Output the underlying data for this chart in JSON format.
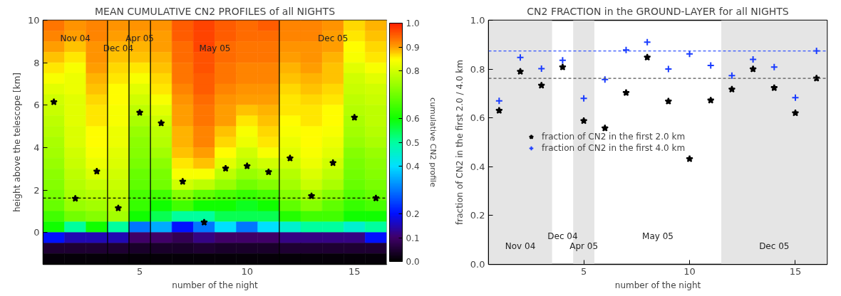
{
  "chart_data": [
    {
      "type": "heatmap",
      "title": "MEAN CUMULATIVE CN2 PROFILES of all NIGHTS",
      "xlabel": "number of the night",
      "ylabel": "height above the telescope [km]",
      "clabel": "cumulative CN2 profile",
      "x": [
        1,
        2,
        3,
        4,
        5,
        6,
        7,
        8,
        9,
        10,
        11,
        12,
        13,
        14,
        15,
        16
      ],
      "cells": [
        [
          0.93,
          0.91,
          0.92,
          0.91,
          0.91,
          0.91,
          0.95,
          0.97,
          0.95,
          0.94,
          0.95,
          0.92,
          0.92,
          0.91,
          0.87,
          0.89
        ],
        [
          0.92,
          0.9,
          0.92,
          0.9,
          0.9,
          0.9,
          0.95,
          0.97,
          0.95,
          0.94,
          0.94,
          0.92,
          0.92,
          0.9,
          0.86,
          0.88
        ],
        [
          0.9,
          0.88,
          0.91,
          0.89,
          0.89,
          0.9,
          0.94,
          0.97,
          0.94,
          0.93,
          0.93,
          0.91,
          0.91,
          0.9,
          0.85,
          0.87
        ],
        [
          0.88,
          0.86,
          0.91,
          0.88,
          0.88,
          0.89,
          0.94,
          0.96,
          0.94,
          0.93,
          0.93,
          0.9,
          0.91,
          0.89,
          0.84,
          0.86
        ],
        [
          0.86,
          0.84,
          0.9,
          0.87,
          0.86,
          0.88,
          0.93,
          0.96,
          0.93,
          0.92,
          0.92,
          0.89,
          0.9,
          0.88,
          0.82,
          0.84
        ],
        [
          0.84,
          0.83,
          0.89,
          0.86,
          0.84,
          0.87,
          0.93,
          0.95,
          0.93,
          0.92,
          0.92,
          0.88,
          0.89,
          0.88,
          0.8,
          0.82
        ],
        [
          0.82,
          0.83,
          0.88,
          0.85,
          0.82,
          0.86,
          0.92,
          0.95,
          0.92,
          0.91,
          0.91,
          0.87,
          0.88,
          0.87,
          0.79,
          0.8
        ],
        [
          0.8,
          0.82,
          0.87,
          0.85,
          0.8,
          0.84,
          0.91,
          0.94,
          0.91,
          0.9,
          0.9,
          0.86,
          0.87,
          0.86,
          0.78,
          0.79
        ],
        [
          0.79,
          0.82,
          0.86,
          0.84,
          0.78,
          0.82,
          0.9,
          0.93,
          0.9,
          0.88,
          0.89,
          0.86,
          0.86,
          0.85,
          0.77,
          0.78
        ],
        [
          0.78,
          0.82,
          0.86,
          0.84,
          0.76,
          0.8,
          0.9,
          0.93,
          0.9,
          0.86,
          0.88,
          0.85,
          0.86,
          0.85,
          0.76,
          0.78
        ],
        [
          0.77,
          0.81,
          0.85,
          0.83,
          0.74,
          0.78,
          0.89,
          0.92,
          0.88,
          0.84,
          0.87,
          0.84,
          0.85,
          0.84,
          0.75,
          0.77
        ],
        [
          0.76,
          0.81,
          0.85,
          0.83,
          0.73,
          0.77,
          0.89,
          0.92,
          0.87,
          0.83,
          0.86,
          0.83,
          0.85,
          0.83,
          0.74,
          0.76
        ],
        [
          0.75,
          0.8,
          0.84,
          0.82,
          0.72,
          0.75,
          0.88,
          0.9,
          0.85,
          0.8,
          0.84,
          0.82,
          0.84,
          0.82,
          0.72,
          0.74
        ],
        [
          0.74,
          0.79,
          0.83,
          0.81,
          0.71,
          0.73,
          0.86,
          0.88,
          0.82,
          0.78,
          0.8,
          0.8,
          0.83,
          0.8,
          0.71,
          0.73
        ],
        [
          0.73,
          0.78,
          0.81,
          0.8,
          0.69,
          0.71,
          0.84,
          0.84,
          0.78,
          0.74,
          0.76,
          0.77,
          0.81,
          0.78,
          0.7,
          0.72
        ],
        [
          0.72,
          0.77,
          0.79,
          0.79,
          0.68,
          0.7,
          0.8,
          0.78,
          0.74,
          0.7,
          0.72,
          0.75,
          0.79,
          0.76,
          0.69,
          0.71
        ],
        [
          0.71,
          0.76,
          0.77,
          0.78,
          0.66,
          0.65,
          0.72,
          0.68,
          0.66,
          0.64,
          0.66,
          0.72,
          0.75,
          0.72,
          0.67,
          0.69
        ],
        [
          0.69,
          0.74,
          0.75,
          0.77,
          0.64,
          0.6,
          0.65,
          0.6,
          0.6,
          0.58,
          0.6,
          0.68,
          0.72,
          0.68,
          0.64,
          0.66
        ],
        [
          0.65,
          0.7,
          0.72,
          0.75,
          0.6,
          0.55,
          0.5,
          0.5,
          0.55,
          0.55,
          0.55,
          0.62,
          0.65,
          0.65,
          0.6,
          0.6
        ],
        [
          0.6,
          0.5,
          0.6,
          0.5,
          0.3,
          0.35,
          0.2,
          0.3,
          0.4,
          0.3,
          0.4,
          0.45,
          0.5,
          0.5,
          0.45,
          0.5
        ],
        [
          0.2,
          0.15,
          0.15,
          0.15,
          0.1,
          0.1,
          0.08,
          0.12,
          0.1,
          0.1,
          0.1,
          0.12,
          0.12,
          0.12,
          0.12,
          0.2
        ],
        [
          0.05,
          0.05,
          0.05,
          0.05,
          0.04,
          0.04,
          0.04,
          0.05,
          0.04,
          0.04,
          0.04,
          0.05,
          0.05,
          0.05,
          0.05,
          0.05
        ],
        [
          0.01,
          0.01,
          0.01,
          0.01,
          0.01,
          0.01,
          0.01,
          0.01,
          0.01,
          0.01,
          0.01,
          0.01,
          0.01,
          0.01,
          0.01,
          0.01
        ]
      ],
      "clim": [
        0,
        1
      ],
      "cticks": [
        {
          "value": 0,
          "label": "0.0"
        },
        {
          "value": 0.1,
          "label": "0.1"
        },
        {
          "value": 0.2,
          "label": "0.2"
        },
        {
          "value": 0.4,
          "label": "0.4"
        },
        {
          "value": 0.5,
          "label": "0.5"
        },
        {
          "value": 0.6,
          "label": "0.6"
        },
        {
          "value": 0.8,
          "label": "0.8"
        },
        {
          "value": 0.9,
          "label": "0.9"
        },
        {
          "value": 1,
          "label": "1.0"
        }
      ],
      "series": [
        {
          "type": "scatter",
          "color": "#000000",
          "marker": "star",
          "x": [
            1,
            2,
            3,
            4,
            5,
            6,
            7,
            8,
            9,
            10,
            11,
            12,
            13,
            14,
            15,
            16
          ],
          "values": [
            6.15,
            1.6,
            2.88,
            1.15,
            5.65,
            5.15,
            2.4,
            0.48,
            3.02,
            3.13,
            2.85,
            3.5,
            1.72,
            3.28,
            5.42,
            1.62
          ]
        }
      ],
      "xlim": [
        0.5,
        16.5
      ],
      "xticks": [
        5,
        10,
        15
      ],
      "ylim": [
        -1.5,
        10
      ],
      "yticks": [
        0,
        2,
        4,
        6,
        8,
        10
      ],
      "ref_lines": [
        {
          "axis": "y",
          "value": 1.62,
          "color": "#000000",
          "line_style": "dashed"
        },
        {
          "axis": "x",
          "value": 3.5,
          "color": "#000000",
          "line_style": "solid"
        },
        {
          "axis": "x",
          "value": 4.5,
          "color": "#000000",
          "line_style": "solid"
        },
        {
          "axis": "x",
          "value": 5.5,
          "color": "#000000",
          "line_style": "solid"
        },
        {
          "axis": "x",
          "value": 11.5,
          "color": "#000000",
          "line_style": "solid"
        }
      ],
      "annotations": [
        "Nov 04",
        "Dec 04",
        "Apr 05",
        "May 05",
        "Dec 05"
      ],
      "grid": false
    },
    {
      "type": "scatter",
      "title": "CN2 FRACTION in the GROUND-LAYER for all NIGHTS",
      "xlabel": "number of the night",
      "ylabel": "fraction of CN2 in the first 2.0 / 4.0 km",
      "x": [
        1,
        2,
        3,
        4,
        5,
        6,
        7,
        8,
        9,
        10,
        11,
        12,
        13,
        14,
        15,
        16
      ],
      "series": [
        {
          "name": "fraction of CN2 in the first 2.0 km",
          "color": "#000000",
          "marker": "star",
          "values": [
            0.63,
            0.79,
            0.733,
            0.808,
            0.588,
            0.558,
            0.703,
            0.848,
            0.668,
            0.432,
            0.672,
            0.717,
            0.8,
            0.723,
            0.62,
            0.762
          ]
        },
        {
          "name": "fraction of CN2 in the first 4.0 km",
          "color": "#1a3cff",
          "marker": "cross",
          "values": [
            0.67,
            0.848,
            0.802,
            0.836,
            0.68,
            0.757,
            0.878,
            0.91,
            0.8,
            0.862,
            0.815,
            0.773,
            0.84,
            0.808,
            0.683,
            0.875
          ]
        }
      ],
      "xlim": [
        0.5,
        16.5
      ],
      "xticks": [
        5,
        10,
        15
      ],
      "ylim": [
        0,
        1
      ],
      "yticks": [
        {
          "value": 0,
          "label": "0.0"
        },
        {
          "value": 0.2,
          "label": "0.2"
        },
        {
          "value": 0.4,
          "label": "0.4"
        },
        {
          "value": 0.6,
          "label": "0.6"
        },
        {
          "value": 0.8,
          "label": "0.8"
        },
        {
          "value": 1,
          "label": "1.0"
        }
      ],
      "ref_lines": [
        {
          "axis": "y",
          "value": 0.874,
          "color": "#3355ff",
          "line_style": "dashed"
        },
        {
          "axis": "y",
          "value": 0.762,
          "color": "#555555",
          "line_style": "dashed"
        }
      ],
      "bands": [
        {
          "axis": "x",
          "from": 0.5,
          "to": 3.5,
          "color": "#e5e5e5"
        },
        {
          "axis": "x",
          "from": 4.5,
          "to": 5.5,
          "color": "#e5e5e5"
        },
        {
          "axis": "x",
          "from": 11.5,
          "to": 16.5,
          "color": "#e5e5e5"
        }
      ],
      "annotations": [
        "Nov 04",
        "Dec 04",
        "Apr 05",
        "May 05",
        "Dec 05"
      ],
      "legend": "left",
      "grid": false
    }
  ]
}
